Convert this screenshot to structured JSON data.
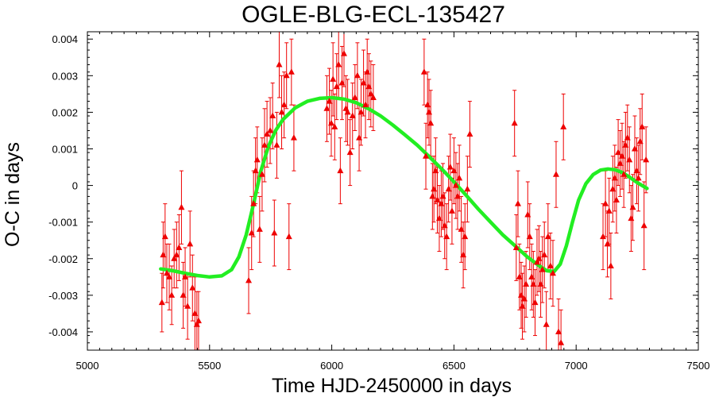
{
  "chart_data": {
    "type": "scatter",
    "title": "OGLE-BLG-ECL-135427",
    "xlabel": "Time HJD-2450000 in days",
    "ylabel": "O-C in days",
    "xlim": [
      5000,
      7500
    ],
    "ylim": [
      -0.0045,
      0.0042
    ],
    "x_ticks": [
      {
        "value": 5000,
        "label": "5000"
      },
      {
        "value": 5500,
        "label": "5500"
      },
      {
        "value": 6000,
        "label": "6000"
      },
      {
        "value": 6500,
        "label": "6500"
      },
      {
        "value": 7000,
        "label": "7000"
      },
      {
        "value": 7500,
        "label": "7500"
      }
    ],
    "y_ticks": [
      {
        "value": 0.004,
        "label": "0.004"
      },
      {
        "value": 0.003,
        "label": "0.003"
      },
      {
        "value": 0.002,
        "label": "0.002"
      },
      {
        "value": 0.001,
        "label": "0.001"
      },
      {
        "value": 0,
        "label": "0"
      },
      {
        "value": -0.001,
        "label": "-0.001"
      },
      {
        "value": -0.002,
        "label": "-0.002"
      },
      {
        "value": -0.003,
        "label": "-0.003"
      },
      {
        "value": -0.004,
        "label": "-0.004"
      }
    ],
    "grid": false,
    "colors": {
      "points": "#ee0000",
      "fit": "#22ee22",
      "axes": "#000000"
    },
    "series": [
      {
        "type": "scatter_errorbars",
        "marker": "triangle",
        "points": [
          {
            "x": 5305,
            "y": -0.0032,
            "err": 0.0008
          },
          {
            "x": 5310,
            "y": -0.0019,
            "err": 0.0009
          },
          {
            "x": 5318,
            "y": -0.0014,
            "err": 0.0009
          },
          {
            "x": 5325,
            "y": -0.0024,
            "err": 0.0008
          },
          {
            "x": 5335,
            "y": -0.0025,
            "err": 0.0009
          },
          {
            "x": 5345,
            "y": -0.003,
            "err": 0.0008
          },
          {
            "x": 5355,
            "y": -0.002,
            "err": 0.0008
          },
          {
            "x": 5365,
            "y": -0.0019,
            "err": 0.0009
          },
          {
            "x": 5375,
            "y": -0.0017,
            "err": 0.0009
          },
          {
            "x": 5385,
            "y": -0.0006,
            "err": 0.001
          },
          {
            "x": 5392,
            "y": -0.003,
            "err": 0.0009
          },
          {
            "x": 5400,
            "y": -0.0025,
            "err": 0.0008
          },
          {
            "x": 5410,
            "y": -0.0033,
            "err": 0.0009
          },
          {
            "x": 5420,
            "y": -0.0016,
            "err": 0.0009
          },
          {
            "x": 5430,
            "y": -0.0028,
            "err": 0.0009
          },
          {
            "x": 5440,
            "y": -0.0035,
            "err": 0.001
          },
          {
            "x": 5448,
            "y": -0.0038,
            "err": 0.0009
          },
          {
            "x": 5455,
            "y": -0.0037,
            "err": 0.0008
          },
          {
            "x": 5660,
            "y": -0.0026,
            "err": 0.0009
          },
          {
            "x": 5672,
            "y": -0.0013,
            "err": 0.001
          },
          {
            "x": 5680,
            "y": -0.0005,
            "err": 0.0009
          },
          {
            "x": 5688,
            "y": 0.0004,
            "err": 0.0009
          },
          {
            "x": 5695,
            "y": 0.0007,
            "err": 0.0009
          },
          {
            "x": 5705,
            "y": -0.0012,
            "err": 0.0009
          },
          {
            "x": 5715,
            "y": 0.0003,
            "err": 0.001
          },
          {
            "x": 5725,
            "y": 0.0011,
            "err": 0.001
          },
          {
            "x": 5735,
            "y": 0.0014,
            "err": 0.0009
          },
          {
            "x": 5748,
            "y": 0.0015,
            "err": 0.0009
          },
          {
            "x": 5758,
            "y": 0.0019,
            "err": 0.0009
          },
          {
            "x": 5765,
            "y": -0.0013,
            "err": 0.0009
          },
          {
            "x": 5775,
            "y": 0.0011,
            "err": 0.0009
          },
          {
            "x": 5785,
            "y": 0.0033,
            "err": 0.0009
          },
          {
            "x": 5795,
            "y": 0.002,
            "err": 0.001
          },
          {
            "x": 5805,
            "y": 0.0022,
            "err": 0.0009
          },
          {
            "x": 5815,
            "y": 0.003,
            "err": 0.0009
          },
          {
            "x": 5825,
            "y": -0.0014,
            "err": 0.0009
          },
          {
            "x": 5835,
            "y": 0.0031,
            "err": 0.0009
          },
          {
            "x": 5845,
            "y": 0.0013,
            "err": 0.0009
          },
          {
            "x": 5980,
            "y": 0.0021,
            "err": 0.0009
          },
          {
            "x": 5990,
            "y": 0.0023,
            "err": 0.0009
          },
          {
            "x": 5998,
            "y": 0.0017,
            "err": 0.0009
          },
          {
            "x": 6005,
            "y": 0.0029,
            "err": 0.001
          },
          {
            "x": 6012,
            "y": 0.0016,
            "err": 0.0009
          },
          {
            "x": 6020,
            "y": 0.0027,
            "err": 0.0009
          },
          {
            "x": 6028,
            "y": 0.0033,
            "err": 0.0009
          },
          {
            "x": 6035,
            "y": 0.0004,
            "err": 0.0009
          },
          {
            "x": 6042,
            "y": 0.0028,
            "err": 0.001
          },
          {
            "x": 6050,
            "y": 0.0036,
            "err": 0.0009
          },
          {
            "x": 6058,
            "y": 0.0021,
            "err": 0.0009
          },
          {
            "x": 6065,
            "y": 0.002,
            "err": 0.0009
          },
          {
            "x": 6075,
            "y": 0.0009,
            "err": 0.0009
          },
          {
            "x": 6085,
            "y": 0.0019,
            "err": 0.0009
          },
          {
            "x": 6095,
            "y": 0.0024,
            "err": 0.0009
          },
          {
            "x": 6105,
            "y": 0.003,
            "err": 0.0009
          },
          {
            "x": 6112,
            "y": 0.0013,
            "err": 0.0009
          },
          {
            "x": 6120,
            "y": 0.002,
            "err": 0.0009
          },
          {
            "x": 6130,
            "y": 0.0028,
            "err": 0.0009
          },
          {
            "x": 6138,
            "y": 0.0022,
            "err": 0.0009
          },
          {
            "x": 6145,
            "y": 0.0031,
            "err": 0.0009
          },
          {
            "x": 6152,
            "y": 0.0027,
            "err": 0.0009
          },
          {
            "x": 6160,
            "y": 0.0025,
            "err": 0.0009
          },
          {
            "x": 6170,
            "y": 0.0024,
            "err": 0.0009
          },
          {
            "x": 6378,
            "y": 0.0031,
            "err": 0.0009
          },
          {
            "x": 6385,
            "y": 0.0008,
            "err": 0.0009
          },
          {
            "x": 6392,
            "y": 0.0022,
            "err": 0.0009
          },
          {
            "x": 6398,
            "y": 0.002,
            "err": 0.0009
          },
          {
            "x": 6405,
            "y": 0.0017,
            "err": 0.0009
          },
          {
            "x": 6412,
            "y": -0.0003,
            "err": 0.0009
          },
          {
            "x": 6418,
            "y": -0.0001,
            "err": 0.0009
          },
          {
            "x": 6425,
            "y": 0.0004,
            "err": 0.0009
          },
          {
            "x": 6432,
            "y": -0.0004,
            "err": 0.0009
          },
          {
            "x": 6440,
            "y": -0.0009,
            "err": 0.0009
          },
          {
            "x": 6448,
            "y": -0.0005,
            "err": 0.0009
          },
          {
            "x": 6455,
            "y": -0.0003,
            "err": 0.0009
          },
          {
            "x": 6462,
            "y": -0.0011,
            "err": 0.0009
          },
          {
            "x": 6470,
            "y": -0.0014,
            "err": 0.0009
          },
          {
            "x": 6478,
            "y": -0.0001,
            "err": 0.0009
          },
          {
            "x": 6485,
            "y": 0.0005,
            "err": 0.0009
          },
          {
            "x": 6492,
            "y": -0.0007,
            "err": 0.0009
          },
          {
            "x": 6500,
            "y": 0.0004,
            "err": 0.0009
          },
          {
            "x": 6508,
            "y": 0.0,
            "err": 0.0009
          },
          {
            "x": 6515,
            "y": -0.0003,
            "err": 0.0009
          },
          {
            "x": 6522,
            "y": 0.0002,
            "err": 0.0009
          },
          {
            "x": 6530,
            "y": -0.0012,
            "err": 0.0009
          },
          {
            "x": 6538,
            "y": -0.0019,
            "err": 0.0009
          },
          {
            "x": 6545,
            "y": -0.0014,
            "err": 0.0009
          },
          {
            "x": 6555,
            "y": -0.0001,
            "err": 0.0009
          },
          {
            "x": 6565,
            "y": 0.0014,
            "err": 0.0009
          },
          {
            "x": 6748,
            "y": 0.0017,
            "err": 0.0009
          },
          {
            "x": 6755,
            "y": -0.0017,
            "err": 0.0009
          },
          {
            "x": 6762,
            "y": -0.0005,
            "err": 0.0009
          },
          {
            "x": 6768,
            "y": -0.0025,
            "err": 0.0009
          },
          {
            "x": 6775,
            "y": -0.003,
            "err": 0.0009
          },
          {
            "x": 6780,
            "y": -0.0033,
            "err": 0.0009
          },
          {
            "x": 6788,
            "y": -0.0031,
            "err": 0.0009
          },
          {
            "x": 6795,
            "y": -0.0027,
            "err": 0.0009
          },
          {
            "x": 6802,
            "y": -0.0008,
            "err": 0.0009
          },
          {
            "x": 6810,
            "y": -0.0014,
            "err": 0.0009
          },
          {
            "x": 6818,
            "y": -0.0025,
            "err": 0.0009
          },
          {
            "x": 6825,
            "y": -0.0027,
            "err": 0.0009
          },
          {
            "x": 6832,
            "y": -0.0032,
            "err": 0.0009
          },
          {
            "x": 6840,
            "y": -0.0021,
            "err": 0.0009
          },
          {
            "x": 6848,
            "y": -0.002,
            "err": 0.0009
          },
          {
            "x": 6855,
            "y": -0.0027,
            "err": 0.0009
          },
          {
            "x": 6862,
            "y": -0.0023,
            "err": 0.0009
          },
          {
            "x": 6870,
            "y": -0.0019,
            "err": 0.0009
          },
          {
            "x": 6878,
            "y": -0.0038,
            "err": 0.0009
          },
          {
            "x": 6885,
            "y": -0.0014,
            "err": 0.0009
          },
          {
            "x": 6895,
            "y": -0.0022,
            "err": 0.0009
          },
          {
            "x": 6905,
            "y": -0.0024,
            "err": 0.0009
          },
          {
            "x": 6918,
            "y": 0.0003,
            "err": 0.0009
          },
          {
            "x": 6928,
            "y": -0.004,
            "err": 0.0009
          },
          {
            "x": 6938,
            "y": -0.0043,
            "err": 0.0009
          },
          {
            "x": 6948,
            "y": 0.0016,
            "err": 0.0009
          },
          {
            "x": 7110,
            "y": -0.0014,
            "err": 0.0009
          },
          {
            "x": 7120,
            "y": -0.0005,
            "err": 0.0009
          },
          {
            "x": 7128,
            "y": -0.0016,
            "err": 0.0009
          },
          {
            "x": 7135,
            "y": -0.0007,
            "err": 0.0009
          },
          {
            "x": 7142,
            "y": -0.0022,
            "err": 0.0009
          },
          {
            "x": 7150,
            "y": -0.0001,
            "err": 0.0009
          },
          {
            "x": 7158,
            "y": 0.0002,
            "err": 0.0009
          },
          {
            "x": 7165,
            "y": -0.0004,
            "err": 0.0009
          },
          {
            "x": 7172,
            "y": 0.0009,
            "err": 0.0009
          },
          {
            "x": 7180,
            "y": 0.0006,
            "err": 0.0009
          },
          {
            "x": 7188,
            "y": 0.0008,
            "err": 0.0009
          },
          {
            "x": 7195,
            "y": 0.0003,
            "err": 0.0009
          },
          {
            "x": 7202,
            "y": 0.0011,
            "err": 0.0009
          },
          {
            "x": 7210,
            "y": 0.0013,
            "err": 0.0009
          },
          {
            "x": 7218,
            "y": 0.0007,
            "err": 0.0009
          },
          {
            "x": 7225,
            "y": -0.0009,
            "err": 0.0009
          },
          {
            "x": 7232,
            "y": -0.0006,
            "err": 0.0009
          },
          {
            "x": 7240,
            "y": 0.001,
            "err": 0.0009
          },
          {
            "x": 7248,
            "y": 0.0004,
            "err": 0.0009
          },
          {
            "x": 7255,
            "y": 0.0002,
            "err": 0.0009
          },
          {
            "x": 7262,
            "y": 0.0012,
            "err": 0.0009
          },
          {
            "x": 7270,
            "y": 0.0016,
            "err": 0.0009
          },
          {
            "x": 7278,
            "y": -0.0011,
            "err": 0.0012
          },
          {
            "x": 7286,
            "y": 0.0007,
            "err": 0.0009
          }
        ]
      },
      {
        "type": "line",
        "points": [
          {
            "x": 5300,
            "y": -0.00228
          },
          {
            "x": 5350,
            "y": -0.00233
          },
          {
            "x": 5400,
            "y": -0.0024
          },
          {
            "x": 5450,
            "y": -0.00246
          },
          {
            "x": 5500,
            "y": -0.0025
          },
          {
            "x": 5550,
            "y": -0.00247
          },
          {
            "x": 5590,
            "y": -0.0023
          },
          {
            "x": 5620,
            "y": -0.00195
          },
          {
            "x": 5650,
            "y": -0.00135
          },
          {
            "x": 5680,
            "y": -0.0005
          },
          {
            "x": 5710,
            "y": 0.0004
          },
          {
            "x": 5740,
            "y": 0.00105
          },
          {
            "x": 5770,
            "y": 0.0015
          },
          {
            "x": 5800,
            "y": 0.0018
          },
          {
            "x": 5850,
            "y": 0.00212
          },
          {
            "x": 5900,
            "y": 0.0023
          },
          {
            "x": 5950,
            "y": 0.00238
          },
          {
            "x": 6000,
            "y": 0.0024
          },
          {
            "x": 6050,
            "y": 0.00236
          },
          {
            "x": 6100,
            "y": 0.00226
          },
          {
            "x": 6150,
            "y": 0.0021
          },
          {
            "x": 6200,
            "y": 0.0019
          },
          {
            "x": 6250,
            "y": 0.00165
          },
          {
            "x": 6300,
            "y": 0.00138
          },
          {
            "x": 6350,
            "y": 0.0011
          },
          {
            "x": 6400,
            "y": 0.00078
          },
          {
            "x": 6450,
            "y": 0.00045
          },
          {
            "x": 6500,
            "y": 0.0001
          },
          {
            "x": 6550,
            "y": -0.00027
          },
          {
            "x": 6600,
            "y": -0.00065
          },
          {
            "x": 6650,
            "y": -0.001
          },
          {
            "x": 6700,
            "y": -0.00135
          },
          {
            "x": 6750,
            "y": -0.00165
          },
          {
            "x": 6800,
            "y": -0.00195
          },
          {
            "x": 6850,
            "y": -0.0022
          },
          {
            "x": 6880,
            "y": -0.00233
          },
          {
            "x": 6910,
            "y": -0.00235
          },
          {
            "x": 6935,
            "y": -0.00215
          },
          {
            "x": 6960,
            "y": -0.00165
          },
          {
            "x": 6985,
            "y": -0.001
          },
          {
            "x": 7010,
            "y": -0.0004
          },
          {
            "x": 7040,
            "y": 5e-05
          },
          {
            "x": 7070,
            "y": 0.0003
          },
          {
            "x": 7100,
            "y": 0.00042
          },
          {
            "x": 7130,
            "y": 0.00045
          },
          {
            "x": 7160,
            "y": 0.00043
          },
          {
            "x": 7190,
            "y": 0.00035
          },
          {
            "x": 7220,
            "y": 0.00022
          },
          {
            "x": 7250,
            "y": 8e-05
          },
          {
            "x": 7290,
            "y": -8e-05
          }
        ]
      }
    ]
  }
}
